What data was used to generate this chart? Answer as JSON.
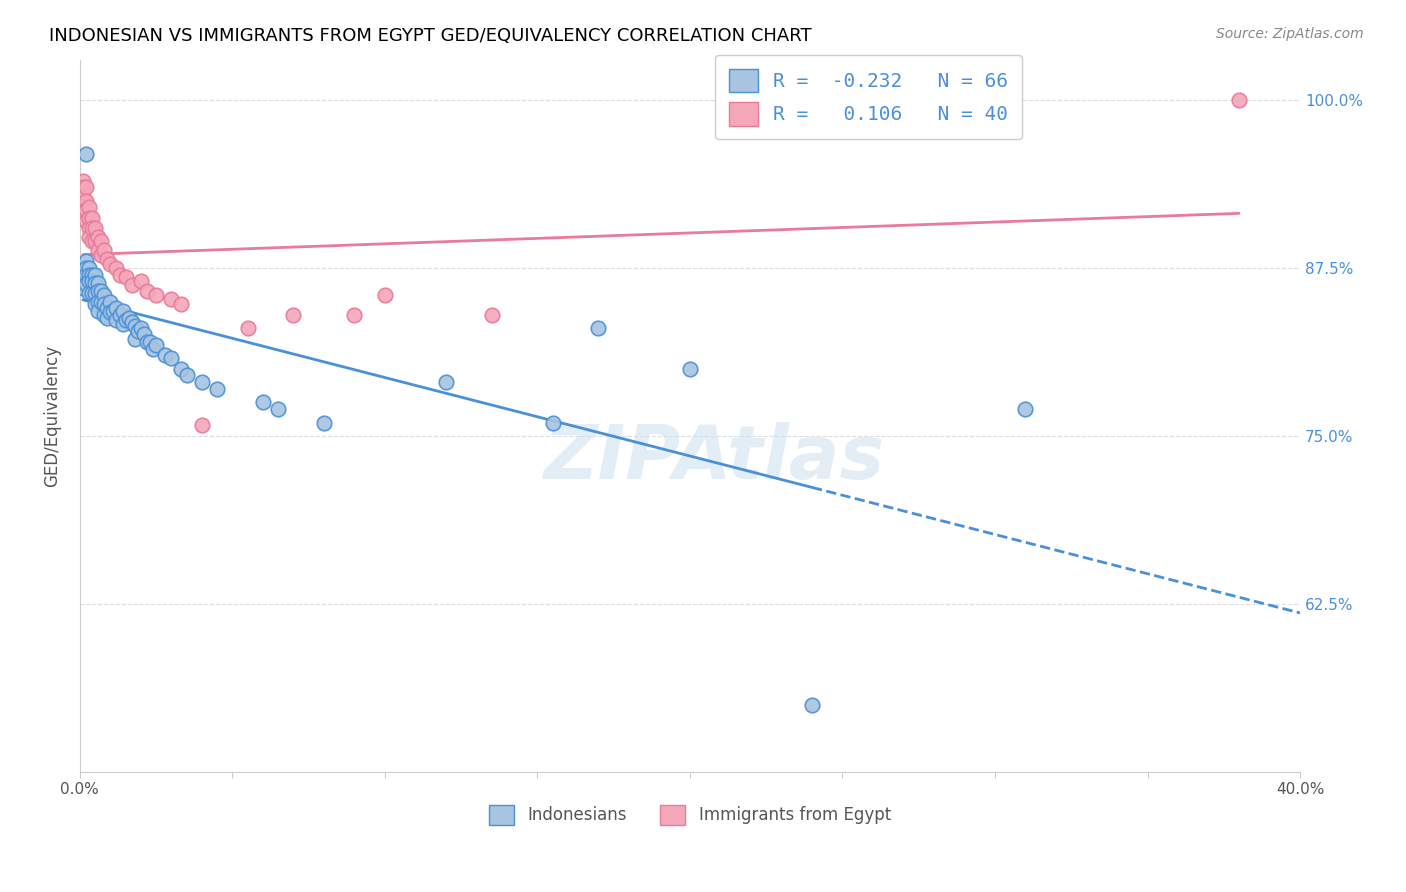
{
  "title": "INDONESIAN VS IMMIGRANTS FROM EGYPT GED/EQUIVALENCY CORRELATION CHART",
  "source": "Source: ZipAtlas.com",
  "ylabel": "GED/Equivalency",
  "xlabel_indonesian": "Indonesians",
  "xlabel_egypt": "Immigrants from Egypt",
  "xlim": [
    0.0,
    0.4
  ],
  "ylim": [
    0.5,
    1.03
  ],
  "xticks": [
    0.0,
    0.05,
    0.1,
    0.15,
    0.2,
    0.25,
    0.3,
    0.35,
    0.4
  ],
  "xticklabels": [
    "0.0%",
    "",
    "",
    "",
    "",
    "",
    "",
    "",
    "40.0%"
  ],
  "yticks": [
    0.625,
    0.75,
    0.875,
    1.0
  ],
  "yticklabels": [
    "62.5%",
    "75.0%",
    "87.5%",
    "100.0%"
  ],
  "R_indonesian": -0.232,
  "N_indonesian": 66,
  "R_egypt": 0.106,
  "N_egypt": 40,
  "color_indonesian": "#a8c4e0",
  "color_egypt": "#f4a7b9",
  "line_color_indonesian": "#4a90d9",
  "line_color_egypt": "#e87a9a",
  "watermark": "ZIPAtlas",
  "indonesian_x": [
    0.001,
    0.001,
    0.001,
    0.001,
    0.002,
    0.002,
    0.002,
    0.002,
    0.002,
    0.003,
    0.003,
    0.003,
    0.003,
    0.004,
    0.004,
    0.004,
    0.005,
    0.005,
    0.005,
    0.005,
    0.006,
    0.006,
    0.006,
    0.006,
    0.007,
    0.007,
    0.008,
    0.008,
    0.008,
    0.009,
    0.009,
    0.01,
    0.01,
    0.011,
    0.012,
    0.012,
    0.013,
    0.014,
    0.014,
    0.015,
    0.016,
    0.017,
    0.018,
    0.018,
    0.019,
    0.02,
    0.021,
    0.022,
    0.023,
    0.024,
    0.025,
    0.028,
    0.03,
    0.033,
    0.035,
    0.04,
    0.045,
    0.06,
    0.065,
    0.08,
    0.12,
    0.155,
    0.17,
    0.2,
    0.24,
    0.31
  ],
  "indonesian_y": [
    0.875,
    0.87,
    0.865,
    0.86,
    0.96,
    0.88,
    0.875,
    0.87,
    0.863,
    0.875,
    0.87,
    0.865,
    0.856,
    0.87,
    0.865,
    0.856,
    0.87,
    0.864,
    0.856,
    0.848,
    0.864,
    0.858,
    0.85,
    0.843,
    0.858,
    0.85,
    0.855,
    0.848,
    0.84,
    0.845,
    0.838,
    0.85,
    0.842,
    0.843,
    0.845,
    0.836,
    0.84,
    0.843,
    0.833,
    0.836,
    0.838,
    0.835,
    0.832,
    0.822,
    0.828,
    0.83,
    0.826,
    0.82,
    0.82,
    0.815,
    0.818,
    0.81,
    0.808,
    0.8,
    0.795,
    0.79,
    0.785,
    0.775,
    0.77,
    0.76,
    0.79,
    0.76,
    0.83,
    0.8,
    0.55,
    0.77
  ],
  "egypt_x": [
    0.001,
    0.001,
    0.001,
    0.001,
    0.002,
    0.002,
    0.002,
    0.002,
    0.003,
    0.003,
    0.003,
    0.003,
    0.004,
    0.004,
    0.004,
    0.005,
    0.005,
    0.006,
    0.006,
    0.007,
    0.007,
    0.008,
    0.009,
    0.01,
    0.012,
    0.013,
    0.015,
    0.017,
    0.02,
    0.022,
    0.025,
    0.03,
    0.033,
    0.04,
    0.055,
    0.07,
    0.09,
    0.1,
    0.135,
    0.38
  ],
  "egypt_y": [
    0.94,
    0.935,
    0.928,
    0.92,
    0.935,
    0.925,
    0.918,
    0.91,
    0.92,
    0.912,
    0.905,
    0.898,
    0.912,
    0.905,
    0.895,
    0.905,
    0.895,
    0.898,
    0.888,
    0.895,
    0.885,
    0.888,
    0.882,
    0.878,
    0.875,
    0.87,
    0.868,
    0.862,
    0.865,
    0.858,
    0.855,
    0.852,
    0.848,
    0.758,
    0.83,
    0.84,
    0.84,
    0.855,
    0.84,
    1.0
  ]
}
